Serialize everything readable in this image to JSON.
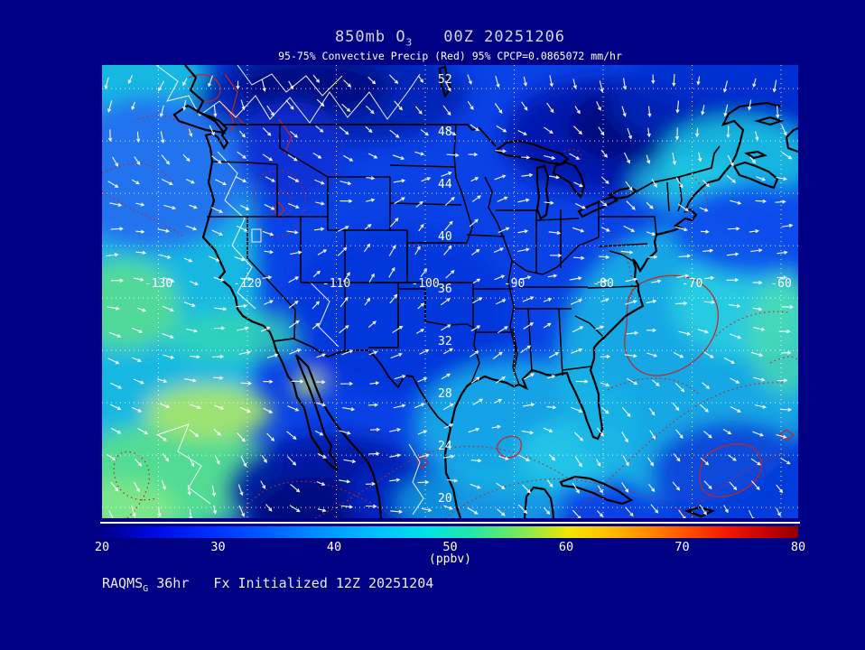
{
  "title": {
    "prefix": "850mb O",
    "sub": "3",
    "time": "00Z 20251206"
  },
  "subtitle": "95-75% Convective Precip (Red) 95% CPCP=0.0865072 mm/hr",
  "credit": {
    "prefix": "RAQMS",
    "sub": "G",
    "suffix": " 36hr   Fx Initialized 12Z 20251204"
  },
  "colorbar": {
    "units_label": "(ppbv)",
    "ticks": [
      "20",
      "30",
      "40",
      "50",
      "60",
      "70",
      "80"
    ],
    "gradient": [
      [
        0,
        "#000085"
      ],
      [
        0.07,
        "#0008e0"
      ],
      [
        0.16,
        "#0030ff"
      ],
      [
        0.24,
        "#0060ff"
      ],
      [
        0.32,
        "#0095ff"
      ],
      [
        0.4,
        "#00c4ff"
      ],
      [
        0.47,
        "#00e4e4"
      ],
      [
        0.53,
        "#20e8a8"
      ],
      [
        0.58,
        "#60e870"
      ],
      [
        0.63,
        "#aae838"
      ],
      [
        0.67,
        "#f0e800"
      ],
      [
        0.72,
        "#ffc400"
      ],
      [
        0.78,
        "#ff9000"
      ],
      [
        0.84,
        "#ff5000"
      ],
      [
        0.9,
        "#f01800"
      ],
      [
        0.96,
        "#c00000"
      ],
      [
        1,
        "#8c0000"
      ]
    ]
  },
  "map": {
    "lat_labels": [
      {
        "value": "52",
        "lat": 52
      },
      {
        "value": "48",
        "lat": 48
      },
      {
        "value": "44",
        "lat": 44
      },
      {
        "value": "40",
        "lat": 40
      },
      {
        "value": "36",
        "lat": 36
      },
      {
        "value": "32",
        "lat": 32
      },
      {
        "value": "28",
        "lat": 28
      },
      {
        "value": "24",
        "lat": 24
      },
      {
        "value": "20",
        "lat": 20
      }
    ],
    "lon_labels": [
      {
        "value": "-130",
        "lon": -130
      },
      {
        "value": "-120",
        "lon": -120
      },
      {
        "value": "-110",
        "lon": -110
      },
      {
        "value": "-100",
        "lon": -100
      },
      {
        "value": "-90",
        "lon": -90
      },
      {
        "value": "-80",
        "lon": -80
      },
      {
        "value": "-70",
        "lon": -70
      },
      {
        "value": "-60",
        "lon": -60
      }
    ]
  },
  "colors": {
    "background": "#000084",
    "title_text": "#d4d6ee",
    "plain_text": "#ffffff",
    "precip_contour_red": "#c82420",
    "wind_vector": "#ffffff",
    "grid_dots": "#ffffff",
    "geography_lines": "#000000"
  },
  "chart_data": {
    "type": "heatmap",
    "title": "850mb O3 00Z 20251206",
    "variable": "850mb ozone mixing ratio",
    "units": "ppbv",
    "colorbar_range": [
      20,
      80
    ],
    "colorbar_ticks": [
      20,
      30,
      40,
      50,
      60,
      70,
      80
    ],
    "lat_range": [
      20,
      52
    ],
    "lon_range": [
      -130,
      -60
    ],
    "overlays": [
      "95-75% convective precip contours (red, dotted=75%, solid=95%)",
      "wind vectors (white arrows)",
      "white ozone contour lines",
      "lat/lon dotted graticule every 4 deg lat / 10 deg lon"
    ],
    "model": "RAQMS_G 36hr forecast initialized 12Z 20251204"
  }
}
